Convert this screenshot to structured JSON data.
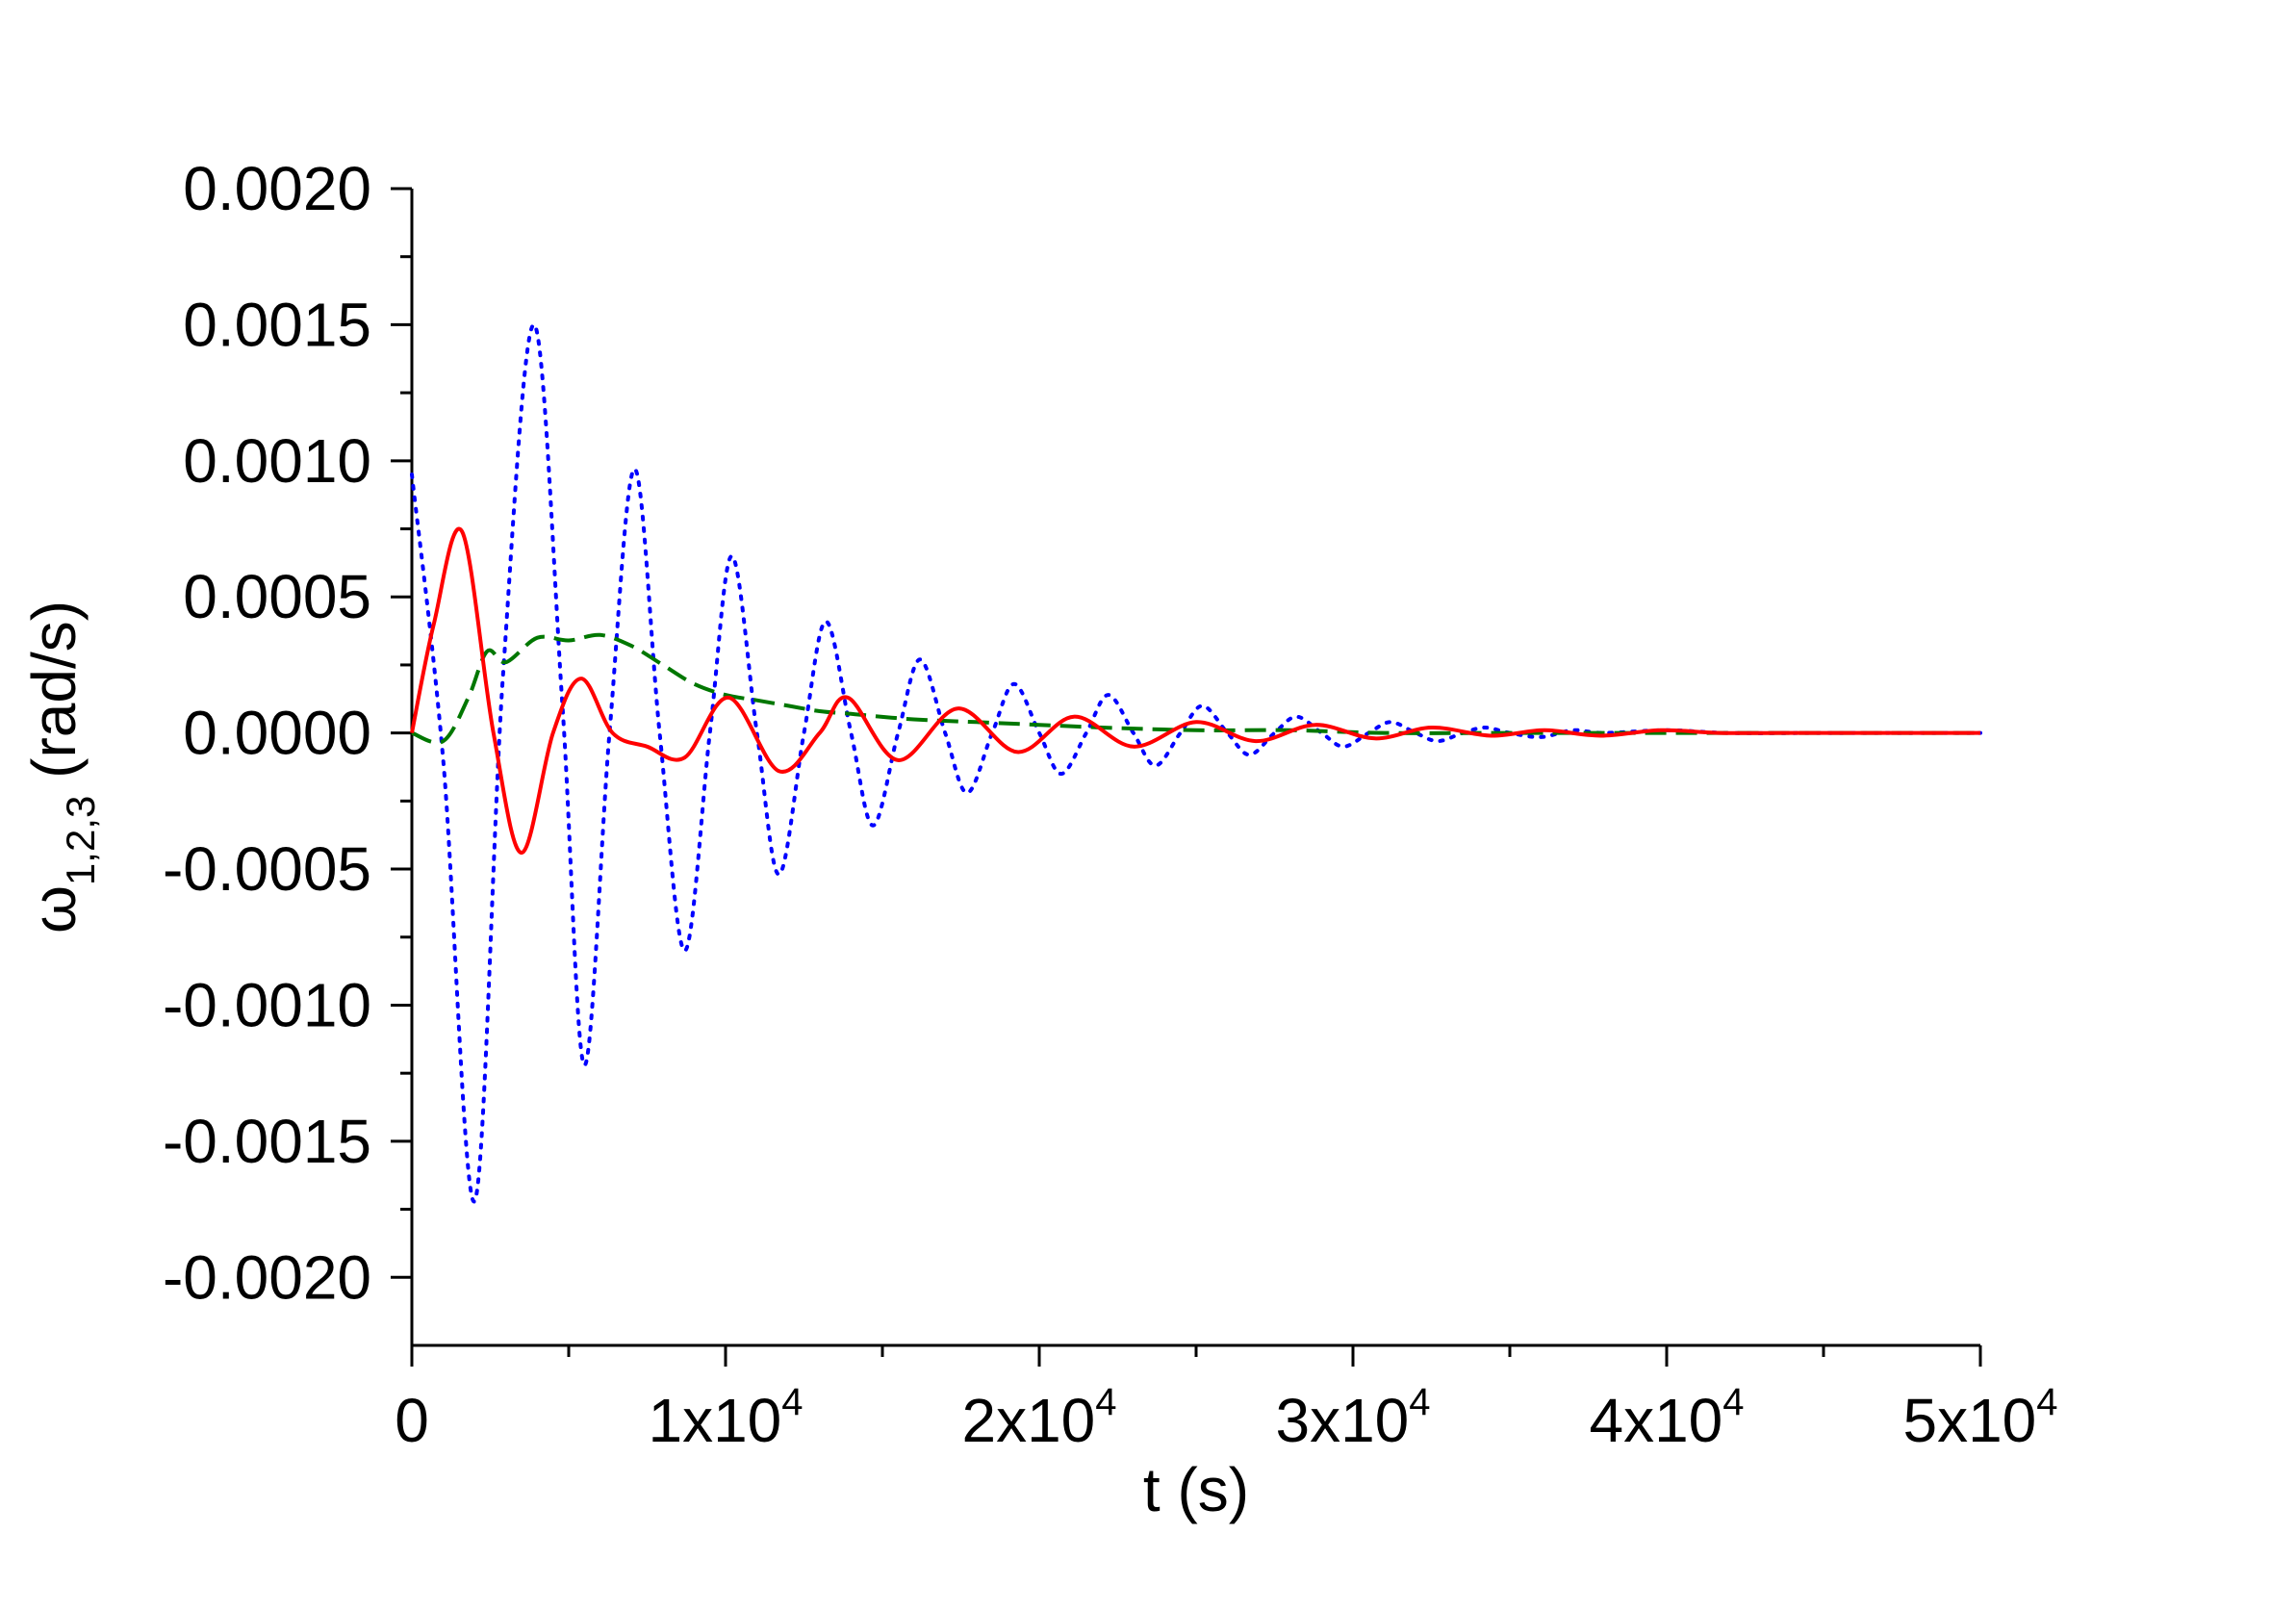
{
  "chart_data": {
    "type": "line",
    "xlabel": "t (s)",
    "ylabel": {
      "symbol": "ω",
      "subscript": "1,2,3",
      "unit": "(rad/s)"
    },
    "xlim": [
      0,
      50000
    ],
    "ylim": [
      -0.00225,
      0.002
    ],
    "x_ticks": [
      {
        "value": 0,
        "base": "0",
        "exp": ""
      },
      {
        "value": 10000,
        "base": "1x10",
        "exp": "4"
      },
      {
        "value": 20000,
        "base": "2x10",
        "exp": "4"
      },
      {
        "value": 30000,
        "base": "3x10",
        "exp": "4"
      },
      {
        "value": 40000,
        "base": "4x10",
        "exp": "4"
      },
      {
        "value": 50000,
        "base": "5x10",
        "exp": "4"
      }
    ],
    "y_ticks": [
      {
        "value": 0.002,
        "label": "0.0020"
      },
      {
        "value": 0.0015,
        "label": "0.0015"
      },
      {
        "value": 0.001,
        "label": "0.0010"
      },
      {
        "value": 0.0005,
        "label": "0.0005"
      },
      {
        "value": 0.0,
        "label": "0.0000"
      },
      {
        "value": -0.0005,
        "label": "-0.0005"
      },
      {
        "value": -0.001,
        "label": "-0.0010"
      },
      {
        "value": -0.0015,
        "label": "-0.0015"
      },
      {
        "value": -0.002,
        "label": "-0.0020"
      }
    ],
    "grid": false,
    "legend": "none",
    "series": [
      {
        "color": "#0000ff",
        "style": "dotted",
        "x": [
          0,
          1000,
          2000,
          2900,
          3900,
          4800,
          5500,
          6300,
          7100,
          7900,
          8700,
          9500,
          10200,
          11000,
          11700,
          12500,
          13200,
          14000,
          14700,
          15500,
          16200,
          17000,
          17700,
          18500,
          19200,
          20000,
          20700,
          21500,
          22200,
          23000,
          23700,
          24500,
          25200,
          26000,
          26700,
          27500,
          28200,
          29000,
          29700,
          30500,
          31200,
          32000,
          32700,
          33500,
          34200,
          35000,
          36000,
          37000,
          38000,
          40000,
          42000,
          45000,
          48000,
          50000
        ],
        "y": [
          0.00095,
          -0.0001,
          -0.00172,
          0.0002,
          0.0015,
          0.0001,
          -0.00122,
          0.0,
          0.00097,
          0.0,
          -0.0008,
          0.0,
          0.00065,
          0.0,
          -0.00052,
          0.0,
          0.00041,
          0.0,
          -0.00034,
          0.0,
          0.00027,
          0.0,
          -0.00022,
          0.0,
          0.00018,
          0.0,
          -0.00015,
          0.0,
          0.00014,
          0.0,
          -0.00012,
          0.0,
          0.0001,
          0.0,
          -8e-05,
          0.0,
          6e-05,
          0.0,
          -5e-05,
          0.0,
          4e-05,
          0.0,
          -3e-05,
          0.0,
          2e-05,
          0.0,
          -1.5e-05,
          1e-05,
          0.0,
          1e-05,
          0.0,
          0.0,
          0.0,
          0.0
        ]
      },
      {
        "color": "#ff0000",
        "style": "solid",
        "x": [
          0,
          700,
          1600,
          2600,
          3500,
          4500,
          5400,
          6400,
          7500,
          8700,
          10100,
          11700,
          13000,
          13900,
          15500,
          17400,
          19300,
          21100,
          23000,
          25000,
          26900,
          28800,
          30700,
          32500,
          34400,
          36100,
          37900,
          39800,
          41700,
          43600,
          45600,
          47500,
          50000
        ],
        "y": [
          0.0,
          0.0004,
          0.00074,
          0.0,
          -0.00044,
          0.0,
          0.0002,
          0.0,
          -5e-05,
          -9e-05,
          0.00013,
          -0.00014,
          0.0,
          0.00013,
          -0.0001,
          9e-05,
          -7e-05,
          6e-05,
          -5e-05,
          4e-05,
          -3e-05,
          3e-05,
          -2e-05,
          2e-05,
          -1e-05,
          1e-05,
          -1e-05,
          1e-05,
          0.0,
          0.0,
          0.0,
          0.0,
          0.0
        ]
      },
      {
        "color": "#007700",
        "style": "dashed",
        "x": [
          0,
          1000,
          1800,
          2400,
          3000,
          4000,
          5000,
          6000,
          7000,
          8000,
          9000,
          10000,
          11000,
          12000,
          13000,
          14000,
          16000,
          18000,
          20000,
          22000,
          25000,
          28000,
          31000,
          35000,
          40000,
          45000,
          50000
        ],
        "y": [
          0.0,
          -3e-05,
          0.00013,
          0.0003,
          0.00026,
          0.00035,
          0.00034,
          0.00036,
          0.00032,
          0.00025,
          0.00018,
          0.00014,
          0.00012,
          0.0001,
          8e-05,
          7e-05,
          5e-05,
          4e-05,
          3e-05,
          2e-05,
          1e-05,
          1e-05,
          0.0,
          0.0,
          0.0,
          0.0,
          0.0
        ]
      }
    ]
  }
}
